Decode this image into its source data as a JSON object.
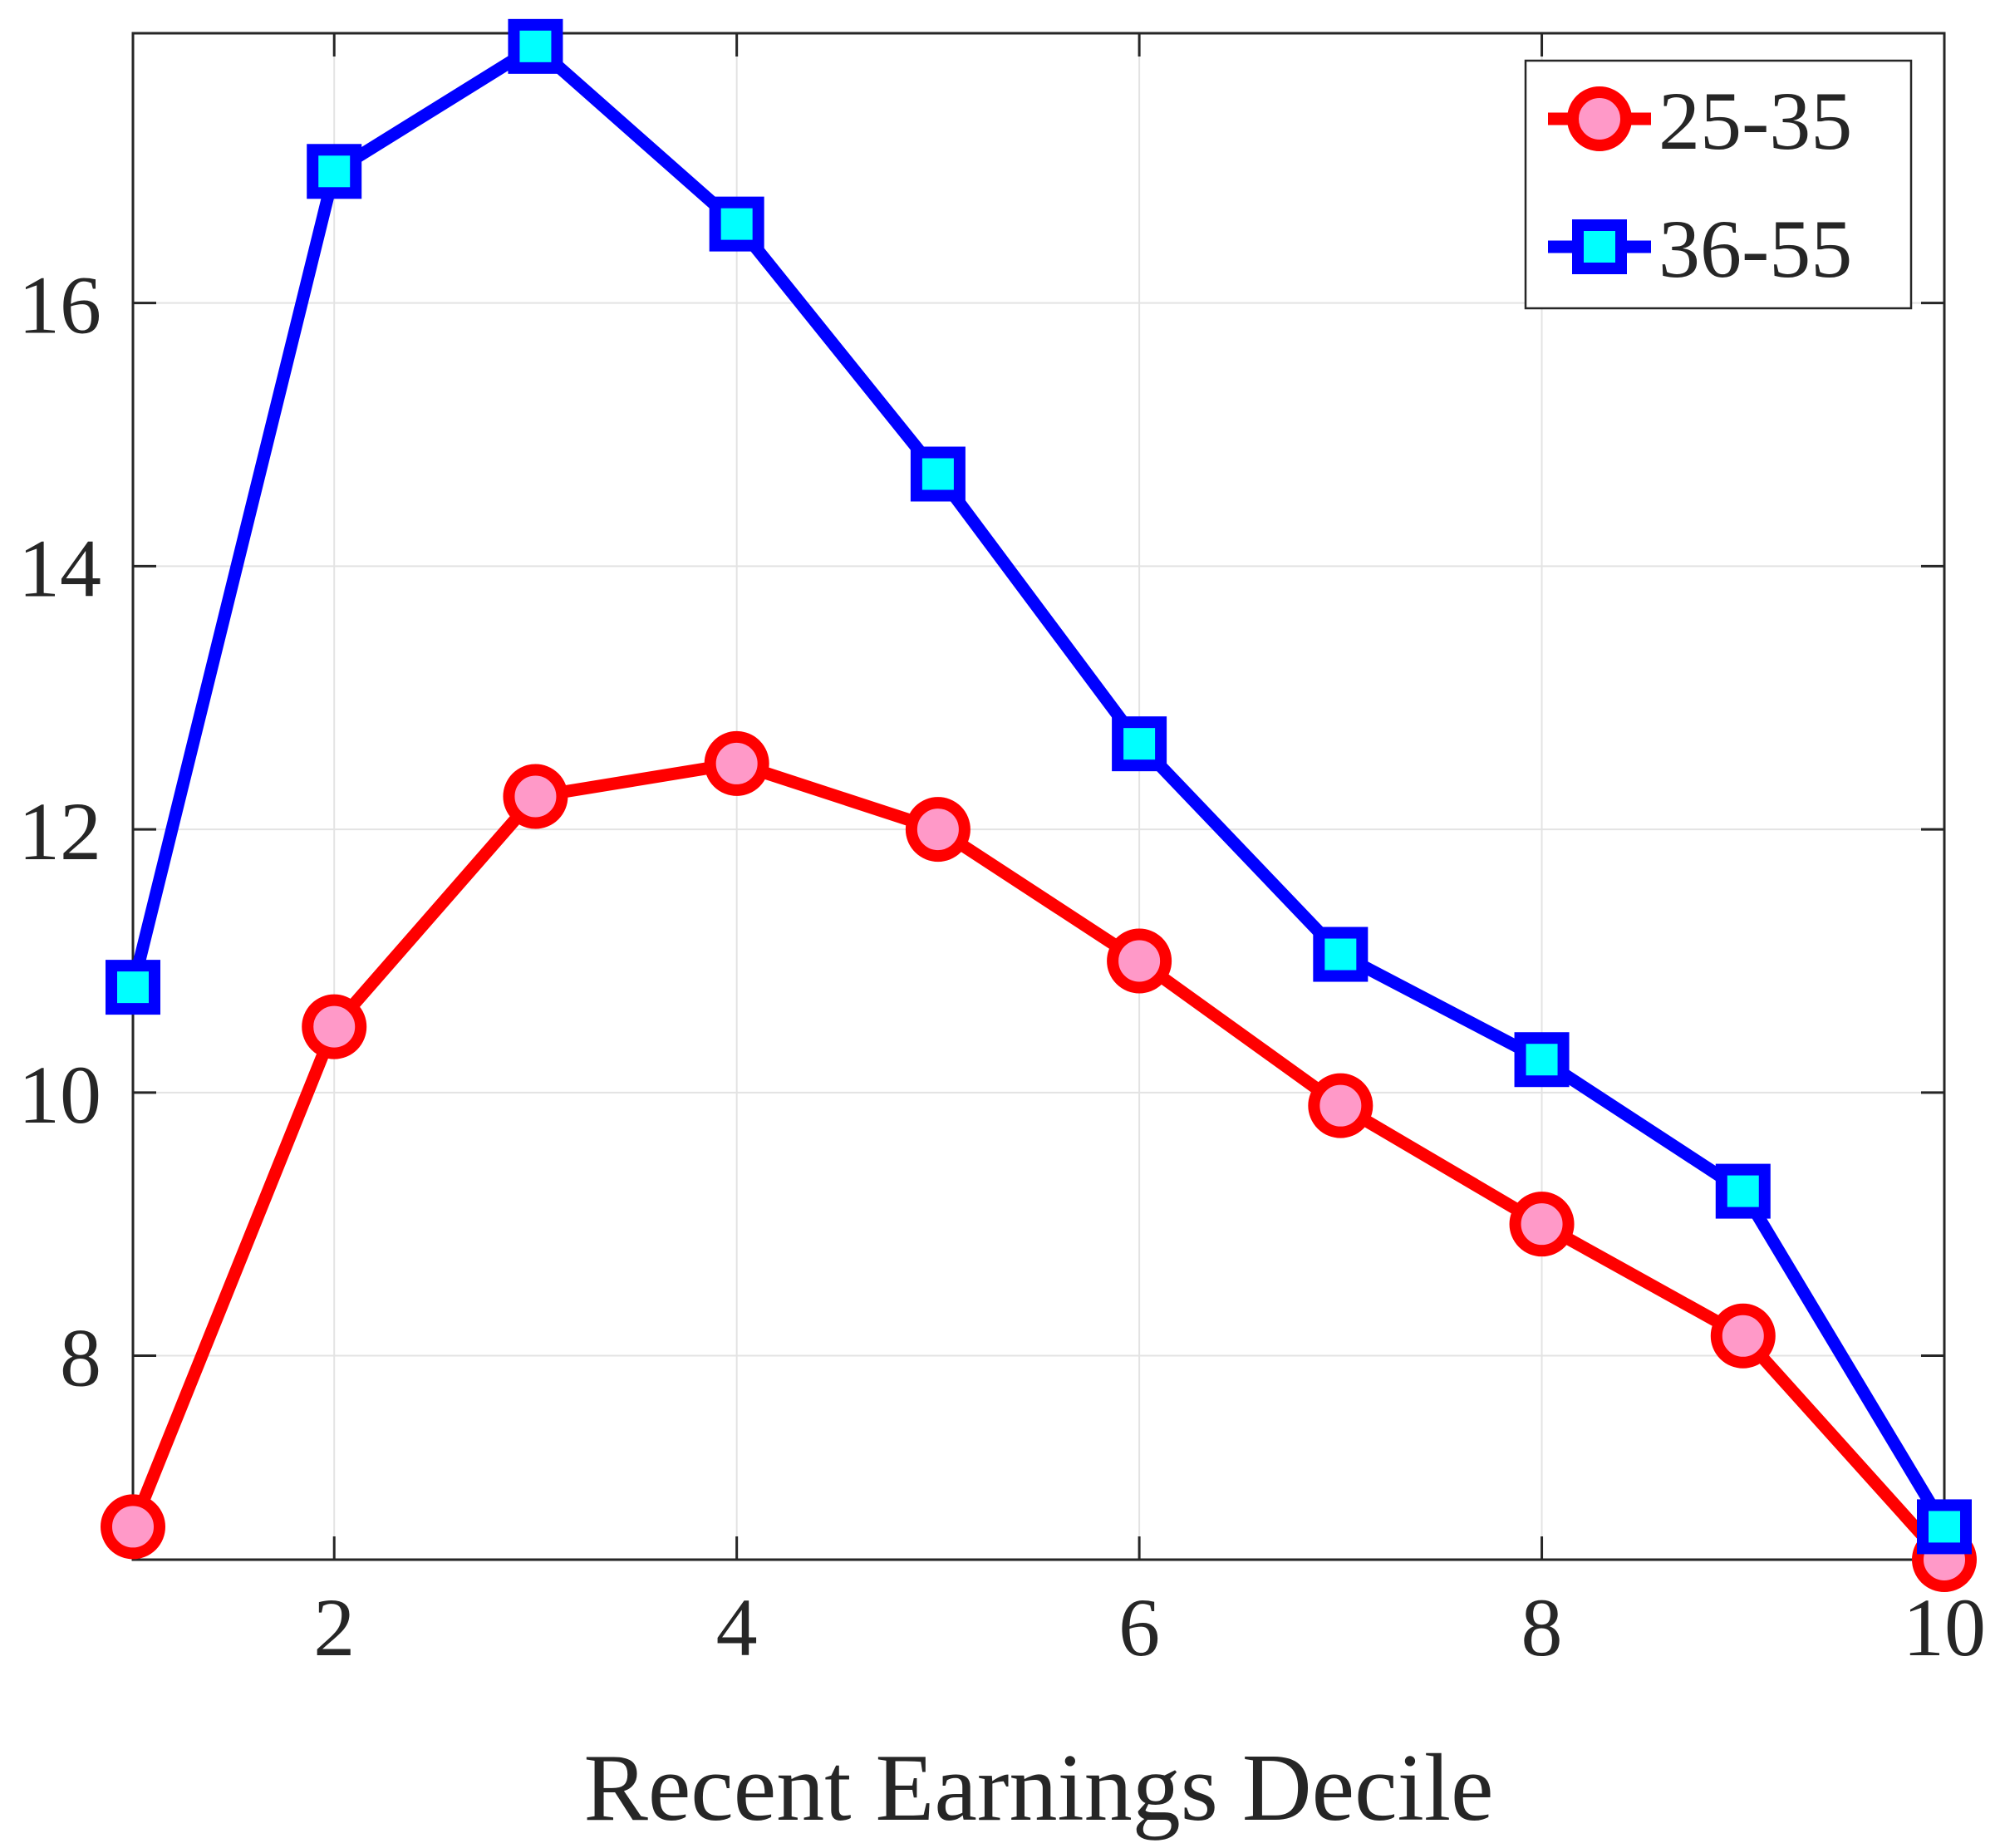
{
  "chart_data": {
    "type": "line",
    "title": "",
    "xlabel": "Recent Earnings Decile",
    "ylabel": "",
    "xlim": [
      1,
      10
    ],
    "ylim": [
      6.45,
      18.05
    ],
    "xticks": [
      2,
      4,
      6,
      8,
      10
    ],
    "yticks": [
      8,
      10,
      12,
      14,
      16
    ],
    "x_tick_labels": [
      "2",
      "4",
      "6",
      "8",
      "10"
    ],
    "y_tick_labels": [
      "8",
      "10",
      "12",
      "14",
      "16"
    ],
    "grid": true,
    "legend_position": "top-right",
    "x": [
      1,
      2,
      3,
      4,
      5,
      6,
      7,
      8,
      9,
      10
    ],
    "series": [
      {
        "name": "25-35",
        "color": "#ff0000",
        "marker": "circle",
        "marker_fill": "#ff99c8",
        "values": [
          6.7,
          10.5,
          12.25,
          12.5,
          12.0,
          11.0,
          9.9,
          9.0,
          8.15,
          6.45
        ]
      },
      {
        "name": "36-55",
        "color": "#0000ff",
        "marker": "square",
        "marker_fill": "#00ffff",
        "values": [
          10.8,
          17.0,
          17.95,
          16.6,
          14.7,
          12.65,
          11.05,
          10.25,
          9.25,
          6.7
        ]
      }
    ]
  }
}
